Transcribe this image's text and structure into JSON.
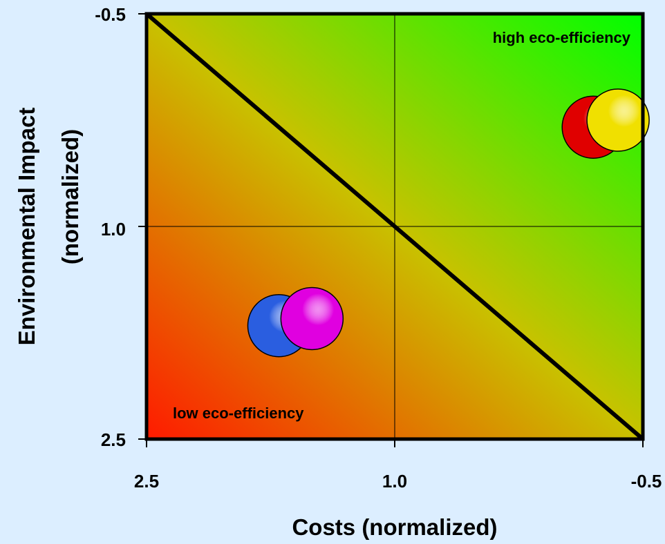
{
  "chart_data": {
    "type": "scatter",
    "title": "",
    "xlabel": "Costs (normalized)",
    "ylabel_line1": "Environmental Impact",
    "ylabel_line2": "(normalized)",
    "xlim": [
      2.5,
      -0.5
    ],
    "ylim": [
      -0.5,
      2.5
    ],
    "x_reversed": true,
    "y_reversed": true,
    "x_ticks": [
      "2.5",
      "1.0",
      "-0.5"
    ],
    "y_ticks": [
      "-0.5",
      "1.0",
      "2.5"
    ],
    "grid": true,
    "reference_lines": {
      "x": 1.0,
      "y": 1.0
    },
    "diagonal": {
      "from": [
        2.5,
        -0.5
      ],
      "to": [
        -0.5,
        2.5
      ]
    },
    "annotations": {
      "top_right": "high eco-efficiency",
      "bottom_left": "low eco-efficiency"
    },
    "points": [
      {
        "x": -0.2,
        "y": 0.3,
        "color": "#e00000"
      },
      {
        "x": -0.35,
        "y": 0.25,
        "color": "#f0e000"
      },
      {
        "x": 1.7,
        "y": 1.7,
        "color": "#2a5ee0"
      },
      {
        "x": 1.5,
        "y": 1.65,
        "color": "#e000e0"
      }
    ],
    "colors": {
      "background": "#dceeff",
      "good_corner": "#00ff00",
      "bad_corner": "#ff1a00",
      "mid": "#c8c200"
    }
  }
}
